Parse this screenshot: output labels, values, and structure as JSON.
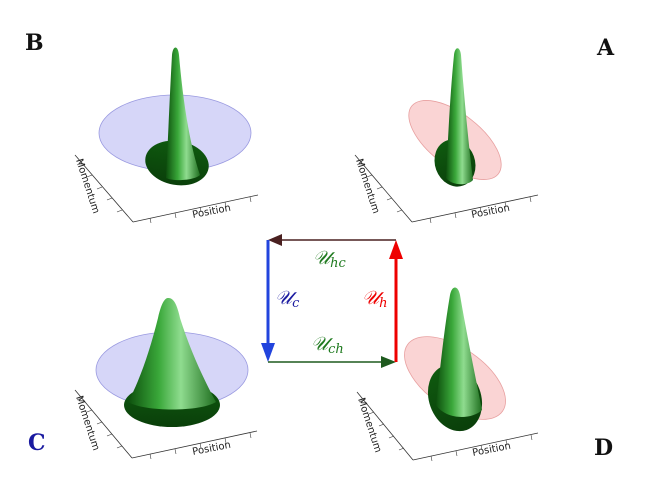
{
  "corner_labels": {
    "a": "A",
    "b": "B",
    "c": "C",
    "d": "D"
  },
  "axes": {
    "position": "Position",
    "momentum": "Momentum"
  },
  "operators": {
    "hc": {
      "symbol": "𝒰",
      "sub": "hc"
    },
    "c": {
      "symbol": "𝒰",
      "sub": "c"
    },
    "h": {
      "symbol": "𝒰",
      "sub": "h"
    },
    "ch": {
      "symbol": "𝒰",
      "sub": "ch"
    }
  },
  "colors": {
    "cold": "#2244dd",
    "hot": "#ee0000",
    "cold_ellipse": "#c8c8f5",
    "hot_ellipse": "#f9c9c9",
    "peak_green": "#1f8a1f",
    "arrow_top": "#4a2020",
    "arrow_bottom": "#1e5a1e"
  }
}
